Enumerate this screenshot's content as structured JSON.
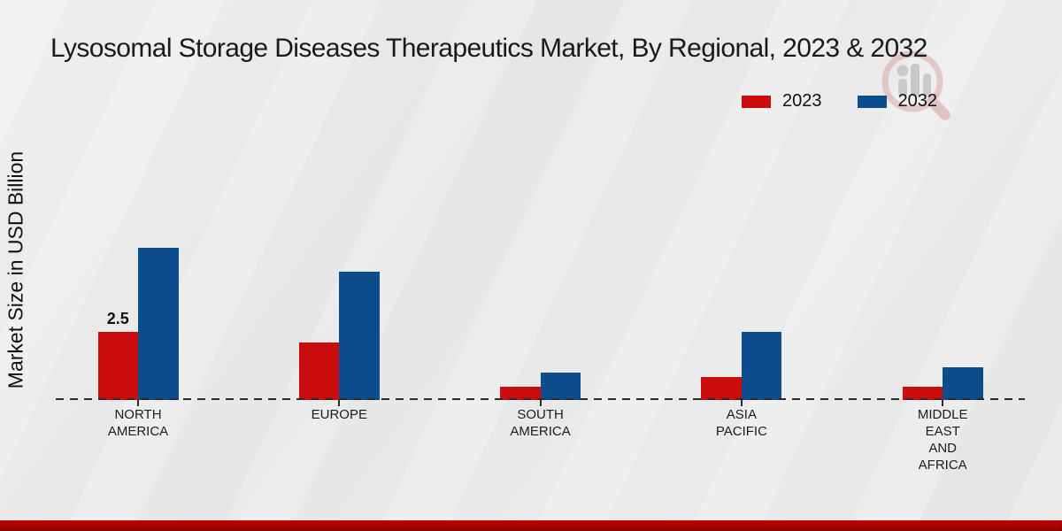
{
  "chart_data": {
    "type": "bar",
    "title": "Lysosomal Storage Diseases Therapeutics Market, By Regional, 2023 & 2032",
    "xlabel": "",
    "ylabel": "Market Size in USD Billion",
    "categories": [
      "NORTH AMERICA",
      "EUROPE",
      "SOUTH AMERICA",
      "ASIA PACIFIC",
      "MIDDLE EAST AND AFRICA"
    ],
    "category_label_lines": [
      [
        "NORTH",
        "AMERICA"
      ],
      [
        "EUROPE"
      ],
      [
        "SOUTH",
        "AMERICA"
      ],
      [
        "ASIA",
        "PACIFIC"
      ],
      [
        "MIDDLE",
        "EAST",
        "AND",
        "AFRICA"
      ]
    ],
    "series": [
      {
        "name": "2023",
        "color": "#cb0c0c",
        "values": [
          2.5,
          2.1,
          0.5,
          0.85,
          0.5
        ]
      },
      {
        "name": "2032",
        "color": "#0e4d8c",
        "values": [
          5.6,
          4.7,
          1.0,
          2.5,
          1.2
        ]
      }
    ],
    "bar_labels": [
      {
        "series": "2023",
        "category": "NORTH AMERICA",
        "text": "2.5"
      }
    ],
    "ylim": [
      0,
      6.5
    ],
    "grid": false,
    "y_axis_ticks_visible": false,
    "legend_position": "top-right",
    "baseline_style": "dashed"
  },
  "watermark": {
    "icon": "magnifier-bar-chart-logo"
  },
  "footer": {
    "accent_color": "#b50505"
  }
}
